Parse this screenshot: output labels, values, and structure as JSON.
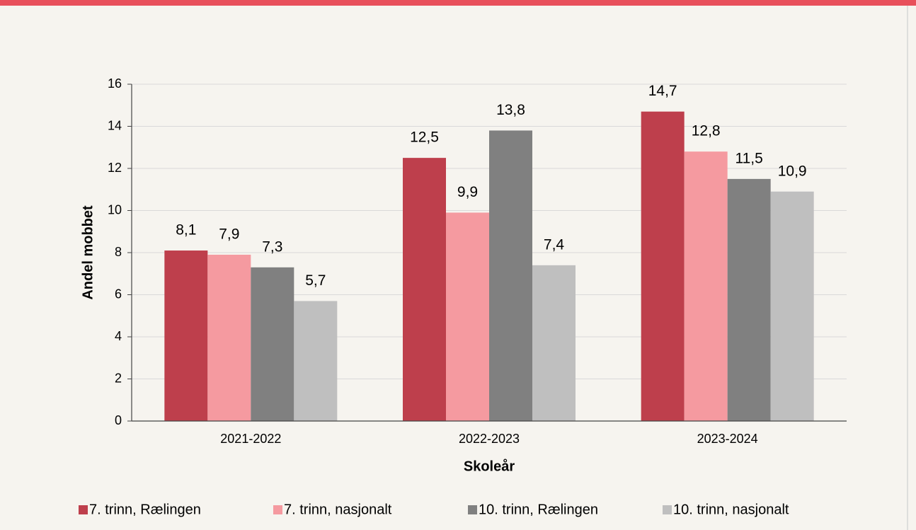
{
  "chart_data": {
    "type": "bar",
    "x_label": "Skoleår",
    "y_label": "Andel mobbet",
    "categories": [
      "2021-2022",
      "2022-2023",
      "2023-2024"
    ],
    "series": [
      {
        "name": "7. trinn, Rælingen",
        "color": "#be3f4c",
        "values": [
          8.1,
          12.5,
          14.7
        ],
        "value_labels": [
          "8,1",
          "12,5",
          "14,7"
        ]
      },
      {
        "name": "7. trinn, nasjonalt",
        "color": "#f59aa0",
        "values": [
          7.9,
          9.9,
          12.8
        ],
        "value_labels": [
          "7,9",
          "9,9",
          "12,8"
        ]
      },
      {
        "name": "10. trinn, Rælingen",
        "color": "#808080",
        "values": [
          7.3,
          13.8,
          11.5
        ],
        "value_labels": [
          "7,3",
          "13,8",
          "11,5"
        ]
      },
      {
        "name": "10. trinn, nasjonalt",
        "color": "#bfbfbf",
        "values": [
          5.7,
          7.4,
          10.9
        ],
        "value_labels": [
          "5,7",
          "7,4",
          "10,9"
        ]
      }
    ],
    "ylim": [
      0,
      16
    ],
    "yticks": [
      0,
      2,
      4,
      6,
      8,
      10,
      12,
      14,
      16
    ],
    "grid": true,
    "legend": "bottom"
  }
}
